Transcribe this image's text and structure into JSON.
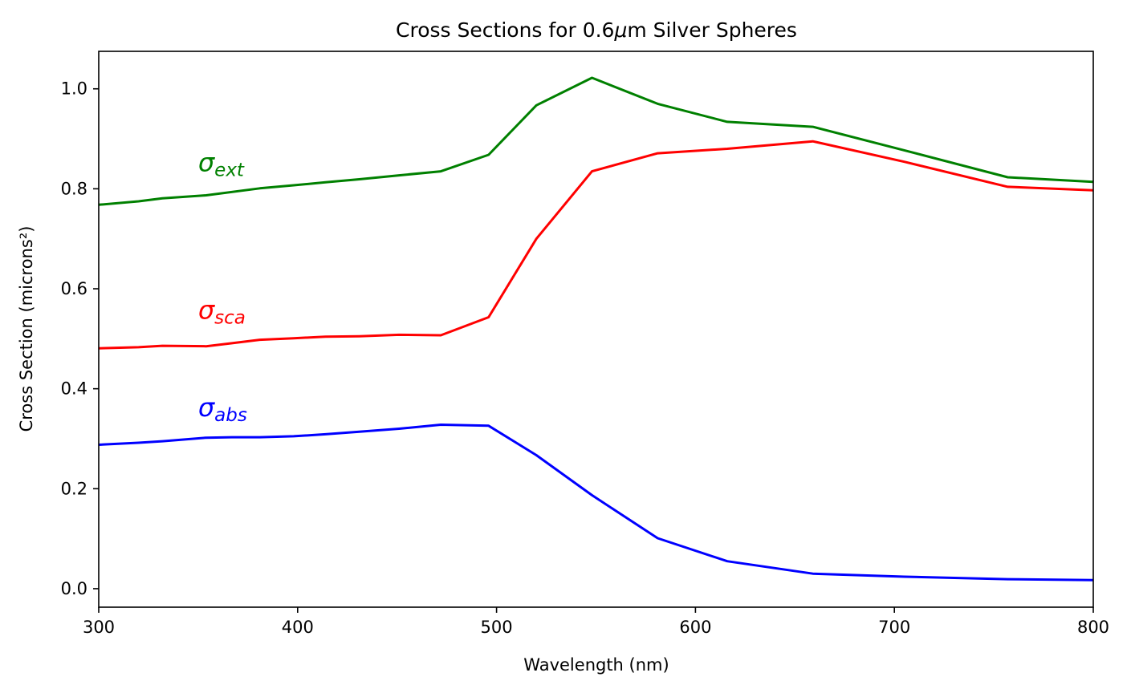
{
  "chart_data": {
    "type": "line",
    "title_prefix": "Cross Sections for 0.6",
    "title_mu": "μ",
    "title_suffix": "m Silver Spheres",
    "xlabel": "Wavelength (nm)",
    "ylabel": "Cross Section (microns²)",
    "xlim": [
      300,
      800
    ],
    "ylim": [
      -0.037,
      1.075
    ],
    "xticks": [
      300,
      400,
      500,
      600,
      700,
      800
    ],
    "xtick_labels": [
      "300",
      "400",
      "500",
      "600",
      "700",
      "800"
    ],
    "yticks": [
      0.0,
      0.2,
      0.4,
      0.6,
      0.8,
      1.0
    ],
    "ytick_labels": [
      "0.0",
      "0.2",
      "0.4",
      "0.6",
      "0.8",
      "1.0"
    ],
    "grid": false,
    "legend": "none",
    "series": [
      {
        "symbol": "σ",
        "subscript": "ext",
        "color": "#008000",
        "label_at": [
          350,
          0.835
        ],
        "x": [
          300,
          320,
          332,
          354,
          381,
          398,
          414,
          431,
          451,
          472,
          496,
          520,
          548,
          581,
          616,
          659,
          705,
          757,
          800
        ],
        "y": [
          0.768,
          0.775,
          0.781,
          0.787,
          0.801,
          0.807,
          0.813,
          0.819,
          0.827,
          0.835,
          0.868,
          0.967,
          1.022,
          0.97,
          0.934,
          0.924,
          0.877,
          0.823,
          0.814
        ]
      },
      {
        "symbol": "σ",
        "subscript": "sca",
        "color": "#ff0000",
        "label_at": [
          350,
          0.54
        ],
        "x": [
          300,
          320,
          332,
          354,
          367,
          381,
          398,
          414,
          431,
          451,
          472,
          496,
          520,
          548,
          581,
          616,
          659,
          705,
          757,
          800
        ],
        "y": [
          0.481,
          0.483,
          0.486,
          0.485,
          0.491,
          0.498,
          0.501,
          0.504,
          0.505,
          0.508,
          0.507,
          0.543,
          0.7,
          0.835,
          0.871,
          0.88,
          0.895,
          0.854,
          0.804,
          0.797
        ]
      },
      {
        "symbol": "σ",
        "subscript": "abs",
        "color": "#0000ff",
        "label_at": [
          350,
          0.345
        ],
        "x": [
          300,
          320,
          332,
          354,
          367,
          381,
          398,
          414,
          431,
          451,
          472,
          496,
          520,
          548,
          581,
          616,
          659,
          705,
          757,
          800
        ],
        "y": [
          0.288,
          0.292,
          0.295,
          0.302,
          0.303,
          0.303,
          0.305,
          0.309,
          0.314,
          0.32,
          0.328,
          0.326,
          0.267,
          0.187,
          0.101,
          0.055,
          0.03,
          0.024,
          0.019,
          0.017
        ]
      }
    ]
  }
}
